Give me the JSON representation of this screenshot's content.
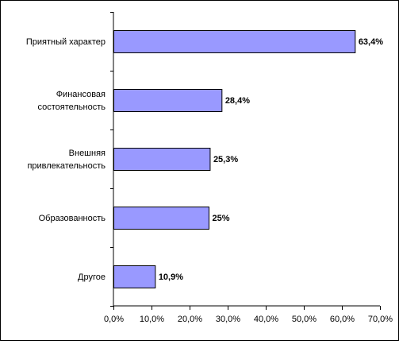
{
  "chart_data": {
    "type": "bar",
    "orientation": "horizontal",
    "title": "",
    "xlabel": "",
    "ylabel": "",
    "categories": [
      [
        "Приятный характер"
      ],
      [
        "Финансовая",
        "состоятельность"
      ],
      [
        "Внешняя",
        "привлекательность"
      ],
      [
        "Образованность"
      ],
      [
        "Другое"
      ]
    ],
    "values": [
      63.4,
      28.4,
      25.3,
      25,
      10.9
    ],
    "value_labels": [
      "63,4%",
      "28,4%",
      "25,3%",
      "25%",
      "10,9%"
    ],
    "xlim": [
      0,
      70
    ],
    "x_ticks": [
      0,
      10,
      20,
      30,
      40,
      50,
      60,
      70
    ],
    "x_tick_labels": [
      "0,0%",
      "10,0%",
      "20,0%",
      "30,0%",
      "40,0%",
      "50,0%",
      "60,0%",
      "70,0%"
    ],
    "grid": false,
    "legend": "none",
    "colors": {
      "bar_fill": "#9999ff",
      "bar_stroke": "#000000"
    }
  }
}
